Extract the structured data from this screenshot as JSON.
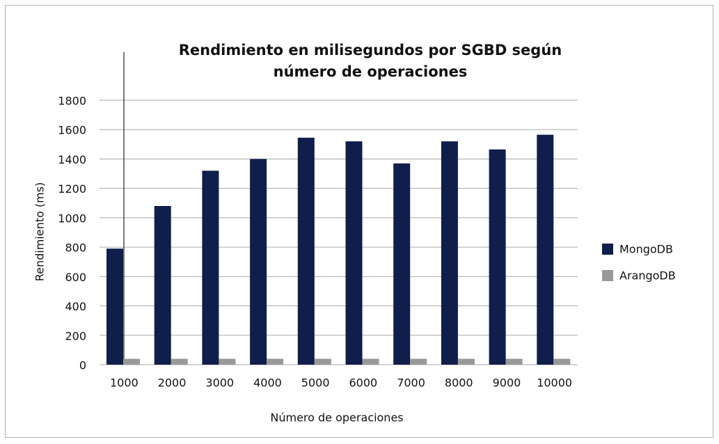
{
  "chart_data": {
    "type": "bar",
    "title": [
      "Rendimiento en milisegundos por SGBD según",
      "número de operaciones"
    ],
    "xlabel": "Número de operaciones",
    "ylabel": "Rendimiento (ms)",
    "categories": [
      "1000",
      "2000",
      "3000",
      "4000",
      "5000",
      "6000",
      "7000",
      "8000",
      "9000",
      "10000"
    ],
    "series": [
      {
        "name": "MongoDB",
        "color": "#0f1e4a",
        "values": [
          790,
          1080,
          1320,
          1400,
          1545,
          1520,
          1370,
          1520,
          1465,
          1565
        ]
      },
      {
        "name": "ArangoDB",
        "color": "#999999",
        "values": [
          40,
          40,
          40,
          40,
          40,
          40,
          40,
          40,
          40,
          40
        ]
      }
    ],
    "ylim": [
      0,
      1800
    ],
    "yticks": [
      0,
      200,
      400,
      600,
      800,
      1000,
      1200,
      1400,
      1600,
      1800
    ],
    "grid": true,
    "legend": "right"
  }
}
